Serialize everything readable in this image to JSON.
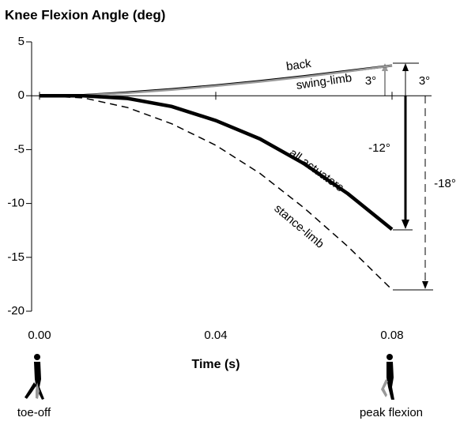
{
  "chart_data": {
    "type": "line",
    "title": "Knee Flexion Angle (deg)",
    "x_label": "Time (s)",
    "x": [
      0,
      0.01,
      0.02,
      0.03,
      0.04,
      0.05,
      0.06,
      0.07,
      0.08
    ],
    "series": [
      {
        "name": "swing-limb",
        "color": "#000000",
        "width": 3,
        "dash": false,
        "values": [
          0,
          0.05,
          0.3,
          0.6,
          0.95,
          1.35,
          1.8,
          2.3,
          2.8
        ]
      },
      {
        "name": "back",
        "color": "#999999",
        "width": 2.5,
        "dash": false,
        "values": [
          0,
          0.05,
          0.25,
          0.55,
          0.9,
          1.3,
          1.75,
          2.25,
          2.8
        ]
      },
      {
        "name": "all actuators",
        "color": "#000000",
        "width": 4.5,
        "dash": false,
        "values": [
          0,
          0,
          -0.25,
          -1.0,
          -2.3,
          -4.0,
          -6.3,
          -9.1,
          -12.4
        ]
      },
      {
        "name": "stance-limb",
        "color": "#000000",
        "width": 1.5,
        "dash": true,
        "values": [
          0,
          -0.2,
          -1.1,
          -2.6,
          -4.6,
          -7.2,
          -10.4,
          -14.0,
          -18.0
        ]
      }
    ],
    "xlim": [
      0,
      0.08
    ],
    "xticks": [
      {
        "value": 0,
        "label": "0.00"
      },
      {
        "value": 0.04,
        "label": "0.04"
      },
      {
        "value": 0.08,
        "label": "0.08"
      }
    ],
    "ylim": [
      -20,
      5
    ],
    "yticks": [
      5,
      0,
      -5,
      -10,
      -15,
      -20
    ],
    "annotations": [
      "3°",
      "3°",
      "-12°",
      "-18°"
    ],
    "phase_labels": [
      "toe-off",
      "peak flexion"
    ]
  }
}
